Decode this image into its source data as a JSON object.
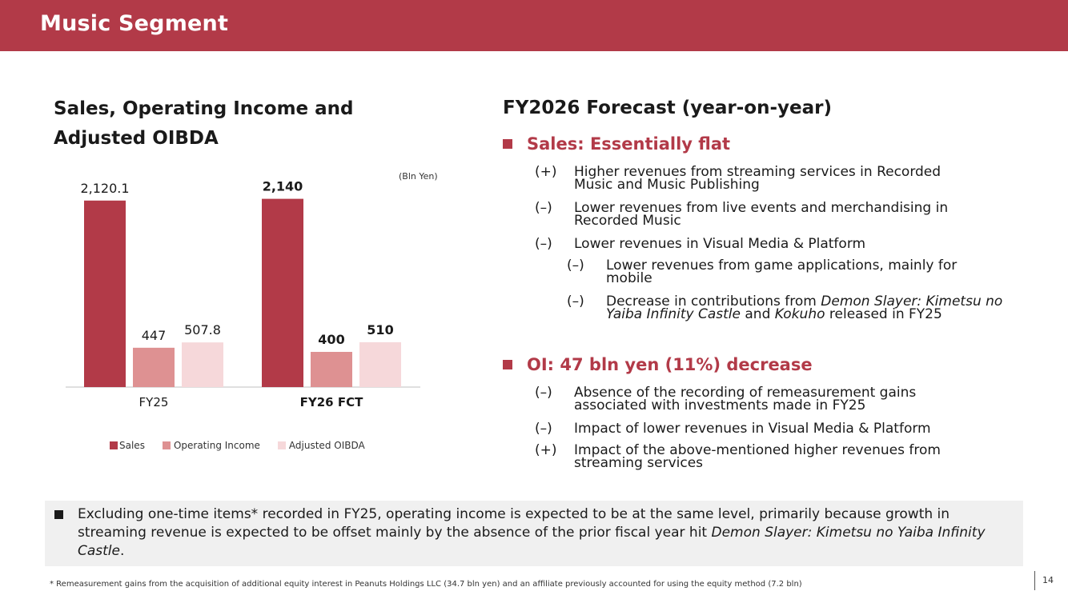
{
  "header": {
    "title": "Music Segment"
  },
  "chart_title": "Sales, Operating Income and Adjusted OIBDA",
  "unit_note": "(Bln Yen)",
  "chart_data": {
    "type": "bar",
    "title": "Sales, Operating Income and Adjusted OIBDA",
    "categories": [
      "FY25",
      "FY26 FCT"
    ],
    "series": [
      {
        "name": "Sales",
        "values": [
          2120.1,
          2140
        ],
        "labels": [
          "2,120.1",
          "2,140"
        ],
        "color": "#b23a48"
      },
      {
        "name": "Operating Income",
        "values": [
          447,
          400
        ],
        "labels": [
          "447",
          "400"
        ],
        "color": "#de9192"
      },
      {
        "name": "Adjusted OIBDA",
        "values": [
          507.8,
          510
        ],
        "labels": [
          "507.8",
          "510"
        ],
        "color": "#f6d8da"
      }
    ],
    "ylim": [
      0,
      2400
    ],
    "grid": false,
    "legend": "bottom",
    "unit": "(Bln Yen)"
  },
  "forecast": {
    "title": "FY2026 Forecast (year-on-year)",
    "sales": {
      "heading": "Sales: Essentially flat",
      "items": [
        {
          "sign": "(+)",
          "text": "Higher revenues from streaming services in Recorded Music and Music Publishing"
        },
        {
          "sign": "(–)",
          "text": "Lower revenues from live events and merchandising in Recorded Music"
        },
        {
          "sign": "(–)",
          "text": "Lower revenues in Visual Media & Platform"
        }
      ],
      "sub_items": [
        {
          "sign": "(–)",
          "text": "Lower revenues from game applications, mainly for mobile"
        },
        {
          "sign": "(–)",
          "text_before": "Decrease in contributions from ",
          "title_1": "Demon Slayer: Kimetsu no Yaiba Infinity Castle",
          "text_mid": " and ",
          "title_2": "Kokuho",
          "text_after": " released in FY25"
        }
      ]
    },
    "oi": {
      "heading": "OI: 47 bln yen (11%) decrease",
      "items": [
        {
          "sign": "(–)",
          "text": "Absence of the recording of remeasurement gains associated with investments made in FY25"
        },
        {
          "sign": "(–)",
          "text": "Impact of lower revenues in Visual Media & Platform"
        },
        {
          "sign": "(+)",
          "text": "Impact of the above-mentioned higher revenues from streaming services"
        }
      ]
    }
  },
  "bottom_note": {
    "text_before": "Excluding one-time items* recorded in FY25, operating income is expected to be at the same level, primarily because growth in streaming revenue is expected to be offset mainly by the absence of the prior fiscal year hit ",
    "title": "Demon Slayer: Kimetsu no Yaiba Infinity Castle",
    "text_after": "."
  },
  "footnote": "* Remeasurement gains from the acquisition of additional equity interest in Peanuts Holdings LLC (34.7 bln yen) and an affiliate previously accounted for using the equity method (7.2 bln)",
  "page_number": "14"
}
